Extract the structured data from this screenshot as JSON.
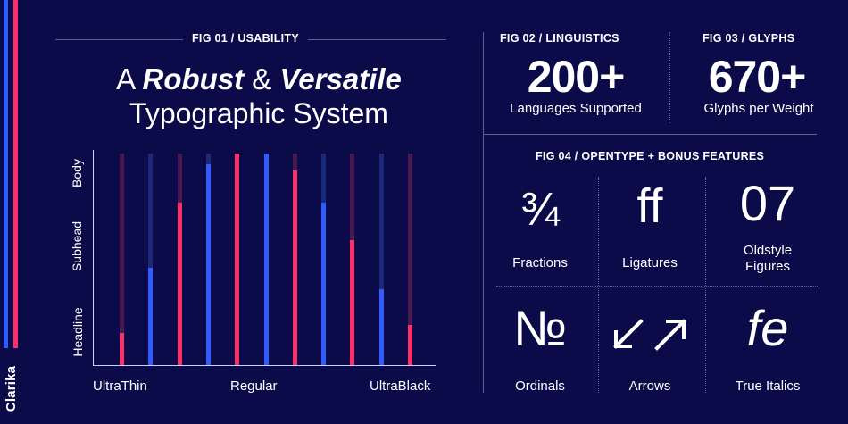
{
  "brand": "Clarika",
  "colors": {
    "background": "#0c0b4a",
    "blue": "#2f5bff",
    "pink": "#ff2f6a",
    "blue_dim": "#1b2a78",
    "pink_dim": "#4a1850"
  },
  "fig01": {
    "label": "FIG 01 / USABILITY",
    "headline_a": "A ",
    "headline_robust": "Robust",
    "headline_amp": " & ",
    "headline_versatile": "Versatile",
    "headline_line2": "Typographic System",
    "y_labels": [
      "Body",
      "Subhead",
      "Headline"
    ],
    "x_labels": [
      "UltraThin",
      "Regular",
      "UltraBlack"
    ]
  },
  "chart_data": {
    "type": "bar",
    "series_colors": [
      "pink",
      "blue",
      "pink",
      "blue",
      "pink",
      "blue",
      "pink",
      "blue",
      "pink",
      "blue",
      "pink"
    ],
    "values": [
      0.15,
      0.46,
      0.77,
      0.95,
      1.0,
      1.0,
      0.92,
      0.77,
      0.59,
      0.36,
      0.19
    ]
  },
  "fig02": {
    "label": "FIG 02 / LINGUISTICS",
    "value": "200+",
    "caption": "Languages Supported"
  },
  "fig03": {
    "label": "FIG 03 / GLYPHS",
    "value": "670+",
    "caption": "Glyphs per Weight"
  },
  "fig04": {
    "label": "FIG 04 / OPENTYPE + BONUS FEATURES",
    "features": [
      {
        "glyph": "¾",
        "label": "Fractions",
        "icon": "fraction-glyph"
      },
      {
        "glyph": "ff",
        "label": "Ligatures",
        "icon": "ligature-glyph"
      },
      {
        "glyph": "07",
        "label": "Oldstyle\nFigures",
        "icon": "oldstyle-glyph"
      },
      {
        "glyph": "№",
        "label": "Ordinals",
        "icon": "ordinal-glyph"
      },
      {
        "glyph": "",
        "label": "Arrows",
        "icon": "arrows-glyph"
      },
      {
        "glyph": "fe",
        "label": "True Italics",
        "icon": "italic-glyph"
      }
    ]
  }
}
